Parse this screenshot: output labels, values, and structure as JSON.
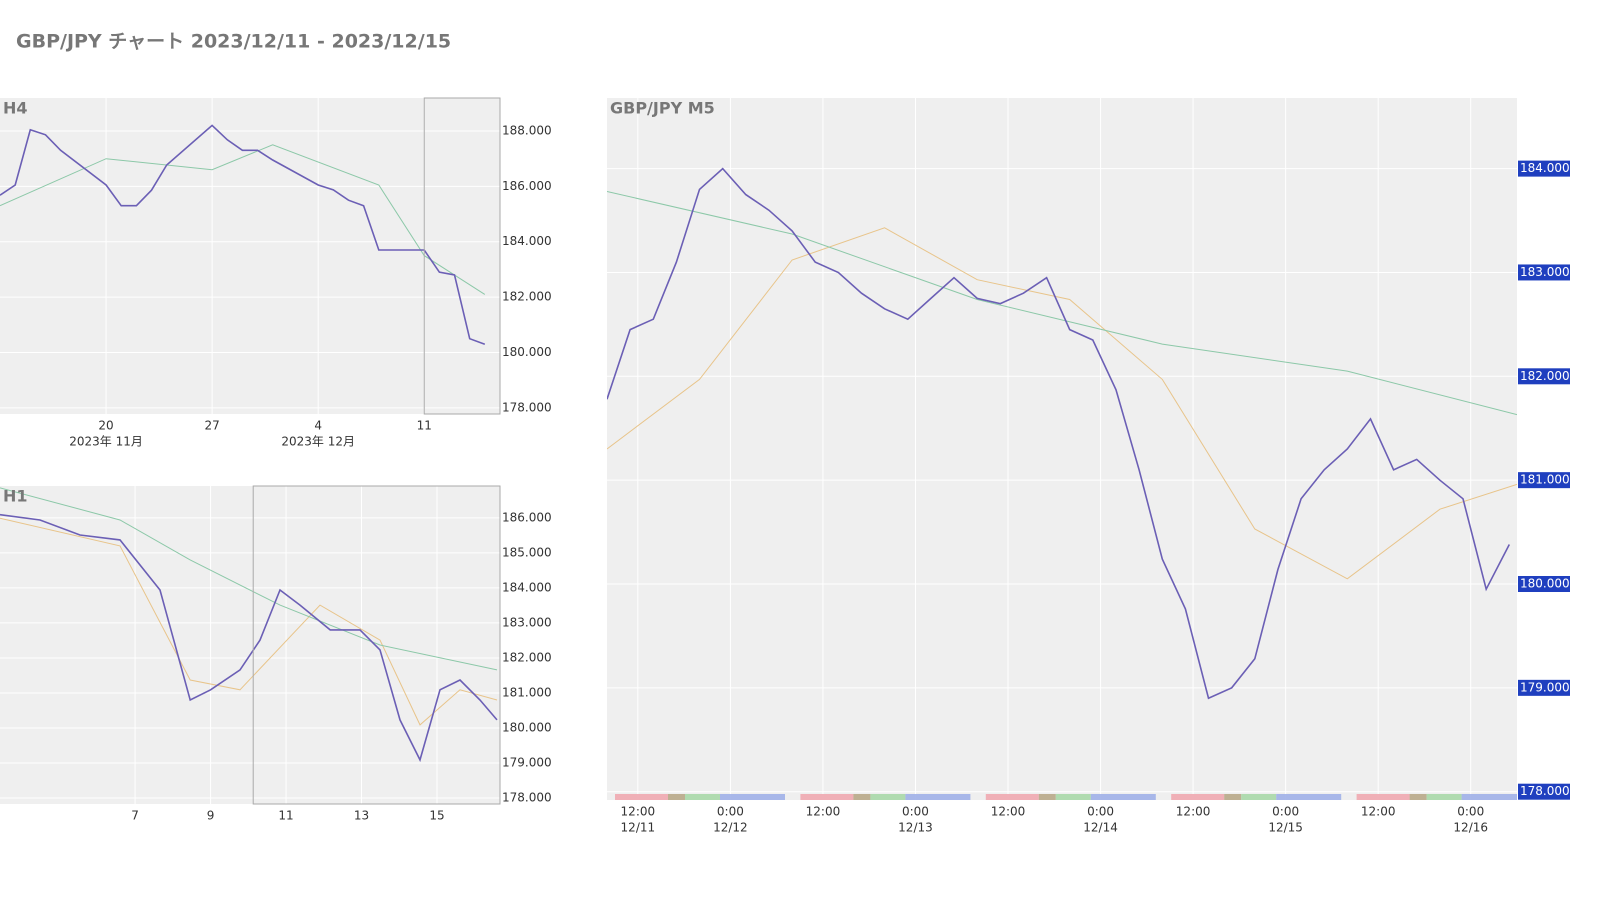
{
  "page_title": "GBP/JPY チャート 2023/12/11 - 2023/12/15",
  "chart_data": [
    {
      "type": "line",
      "title": "H4",
      "x": [
        "2023-11-13",
        "2023-11-14",
        "2023-11-15",
        "2023-11-16",
        "2023-11-17",
        "2023-11-20",
        "2023-11-21",
        "2023-11-22",
        "2023-11-23",
        "2023-11-24",
        "2023-11-27",
        "2023-11-28",
        "2023-11-29",
        "2023-11-30",
        "2023-12-01",
        "2023-12-04",
        "2023-12-05",
        "2023-12-06",
        "2023-12-07",
        "2023-12-08",
        "2023-12-11",
        "2023-12-12",
        "2023-12-13",
        "2023-12-14",
        "2023-12-15"
      ],
      "series": [
        {
          "color": "#6b5fb5",
          "values": [
            185.68,
            186.05,
            188.04,
            187.86,
            187.3,
            186.05,
            185.3,
            185.3,
            185.86,
            186.77,
            188.2,
            187.68,
            187.3,
            187.3,
            186.95,
            186.05,
            185.87,
            185.5,
            185.3,
            183.7,
            183.7,
            182.9,
            182.8,
            180.5,
            180.3
          ]
        },
        {
          "color": "#8cc8a8",
          "x": [
            "2023-11-13",
            "2023-11-20",
            "2023-11-27",
            "2023-12-01",
            "2023-12-08",
            "2023-12-11",
            "2023-12-15"
          ],
          "values": [
            185.3,
            187.0,
            186.6,
            187.5,
            186.05,
            183.5,
            182.1
          ]
        }
      ],
      "xlim": [
        "2023-11-13",
        "2023-12-16"
      ],
      "xticks": [
        {
          "value": "2023-11-20",
          "label": [
            "20",
            "2023年 11月"
          ]
        },
        {
          "value": "2023-11-27",
          "label": [
            "27"
          ]
        },
        {
          "value": "2023-12-04",
          "label": [
            "4",
            "2023年 12月"
          ]
        },
        {
          "value": "2023-12-11",
          "label": [
            "11"
          ]
        }
      ],
      "ylim": [
        177.78,
        189.19
      ],
      "yticks": [
        {
          "value": 178,
          "label": "178.000"
        },
        {
          "value": 180,
          "label": "180.000"
        },
        {
          "value": 182,
          "label": "182.000"
        },
        {
          "value": 184,
          "label": "184.000"
        },
        {
          "value": 186,
          "label": "186.000"
        },
        {
          "value": 188,
          "label": "188.000"
        }
      ],
      "highlight_from": "2023-12-11",
      "grid": true
    },
    {
      "type": "line",
      "title": "H1",
      "x": [
        3.42,
        4.48,
        5.54,
        6.6,
        7.66,
        8.46,
        9.0,
        9.78,
        10.31,
        10.84,
        11.37,
        12.17,
        12.96,
        13.49,
        14.02,
        14.55,
        15.08,
        15.61,
        16.14,
        16.59
      ],
      "series": [
        {
          "color": "#6b5fb5",
          "values": [
            186.09,
            185.94,
            185.51,
            185.37,
            183.94,
            180.8,
            181.09,
            181.66,
            182.51,
            183.94,
            183.51,
            182.8,
            182.8,
            182.23,
            180.23,
            179.09,
            181.09,
            181.37,
            180.8,
            180.23
          ]
        },
        {
          "color": "#8cc8a8",
          "x": [
            3.42,
            6.6,
            8.46,
            10.84,
            13.49,
            16.59
          ],
          "values": [
            186.86,
            185.94,
            184.8,
            183.51,
            182.37,
            181.66
          ]
        },
        {
          "color": "#e8c48a",
          "x": [
            3.42,
            6.6,
            8.46,
            9.78,
            11.9,
            13.49,
            14.55,
            15.61,
            16.59
          ],
          "values": [
            185.99,
            185.2,
            181.37,
            181.09,
            183.51,
            182.51,
            180.09,
            181.09,
            180.8
          ]
        }
      ],
      "xlim": [
        3.42,
        16.67
      ],
      "xticks": [
        7,
        9,
        11,
        13,
        15
      ],
      "ylim": [
        177.83,
        186.91
      ],
      "yticks": [
        {
          "value": 178,
          "label": "178.000"
        },
        {
          "value": 179,
          "label": "179.000"
        },
        {
          "value": 180,
          "label": "180.000"
        },
        {
          "value": 181,
          "label": "181.000"
        },
        {
          "value": 182,
          "label": "182.000"
        },
        {
          "value": 183,
          "label": "183.000"
        },
        {
          "value": 184,
          "label": "184.000"
        },
        {
          "value": 185,
          "label": "185.000"
        },
        {
          "value": 186,
          "label": "186.000"
        }
      ],
      "highlight_from": 10.13,
      "grid": true
    },
    {
      "type": "line",
      "title": "GBP/JPY M5",
      "x": [
        "12/11 08:00",
        "12/11 11:00",
        "12/11 14:00",
        "12/11 17:00",
        "12/11 20:00",
        "12/11 23:00",
        "12/12 02:00",
        "12/12 05:00",
        "12/12 08:00",
        "12/12 11:00",
        "12/12 14:00",
        "12/12 17:00",
        "12/12 20:00",
        "12/12 23:00",
        "12/13 02:00",
        "12/13 05:00",
        "12/13 08:00",
        "12/13 11:00",
        "12/13 14:00",
        "12/13 17:00",
        "12/13 20:00",
        "12/13 23:00",
        "12/14 02:00",
        "12/14 05:00",
        "12/14 08:00",
        "12/14 11:00",
        "12/14 14:00",
        "12/14 17:00",
        "12/14 20:00",
        "12/14 23:00",
        "12/15 02:00",
        "12/15 05:00",
        "12/15 08:00",
        "12/15 11:00",
        "12/15 14:00",
        "12/15 17:00",
        "12/15 20:00",
        "12/15 23:00",
        "12/16 02:00",
        "12/16 05:00"
      ],
      "series": [
        {
          "color": "#6b5fb5",
          "values": [
            181.78,
            182.45,
            182.55,
            183.1,
            183.8,
            184.0,
            183.75,
            183.6,
            183.4,
            183.1,
            183.0,
            182.8,
            182.65,
            182.55,
            182.75,
            182.95,
            182.75,
            182.7,
            182.8,
            182.95,
            182.45,
            182.35,
            181.87,
            181.1,
            180.24,
            179.76,
            178.9,
            179.0,
            179.28,
            180.14,
            180.82,
            181.1,
            181.3,
            181.59,
            181.1,
            181.2,
            181.0,
            180.82,
            179.95,
            180.38
          ]
        },
        {
          "color": "#8cc8a8",
          "x": [
            "12/11 08:00",
            "12/12 08:00",
            "12/13 08:00",
            "12/14 08:00",
            "12/15 08:00",
            "12/16 06:00"
          ],
          "values": [
            183.78,
            183.37,
            182.74,
            182.31,
            182.05,
            181.63
          ]
        },
        {
          "color": "#e8c48a",
          "x": [
            "12/11 08:00",
            "12/11 20:00",
            "12/12 08:00",
            "12/12 20:00",
            "12/13 08:00",
            "12/13 20:00",
            "12/14 08:00",
            "12/14 20:00",
            "12/15 08:00",
            "12/15 20:00",
            "12/16 06:00"
          ],
          "values": [
            181.3,
            181.97,
            183.12,
            183.43,
            182.93,
            182.74,
            181.97,
            180.53,
            180.05,
            180.72,
            180.96
          ]
        }
      ],
      "xlim": [
        "12/11 08:00",
        "12/16 06:00"
      ],
      "xticks": [
        {
          "value": "12/11 12:00",
          "label": [
            "12:00",
            "12/11"
          ]
        },
        {
          "value": "12/12 00:00",
          "label": [
            "0:00",
            "12/12"
          ]
        },
        {
          "value": "12/12 12:00",
          "label": [
            "12:00"
          ]
        },
        {
          "value": "12/13 00:00",
          "label": [
            "0:00",
            "12/13"
          ]
        },
        {
          "value": "12/13 12:00",
          "label": [
            "12:00"
          ]
        },
        {
          "value": "12/14 00:00",
          "label": [
            "0:00",
            "12/14"
          ]
        },
        {
          "value": "12/14 12:00",
          "label": [
            "12:00"
          ]
        },
        {
          "value": "12/15 00:00",
          "label": [
            "0:00",
            "12/15"
          ]
        },
        {
          "value": "12/15 12:00",
          "label": [
            "12:00"
          ]
        },
        {
          "value": "12/16 00:00",
          "label": [
            "0:00",
            "12/16"
          ]
        }
      ],
      "ylim": [
        177.92,
        184.68
      ],
      "yticks": [
        {
          "value": 178,
          "label": "178.000"
        },
        {
          "value": 179,
          "label": "179.000"
        },
        {
          "value": 180,
          "label": "180.000"
        },
        {
          "value": 181,
          "label": "181.000"
        },
        {
          "value": 182,
          "label": "182.000"
        },
        {
          "value": 183,
          "label": "183.000"
        },
        {
          "value": 184,
          "label": "184.000"
        }
      ],
      "grid": true,
      "tick_box_color": "#1f3fbf"
    }
  ]
}
